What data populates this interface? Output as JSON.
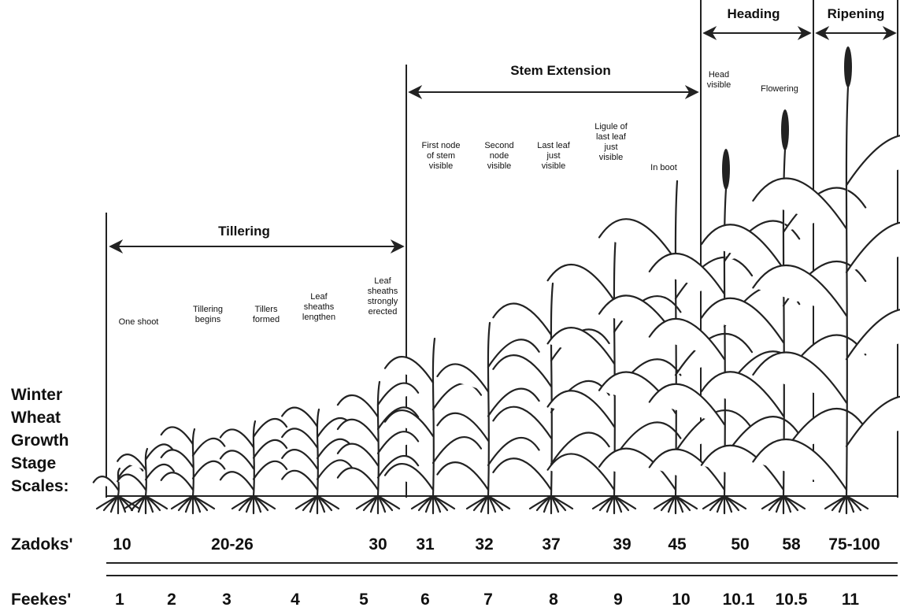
{
  "title_lines": [
    "Winter",
    "Wheat",
    "Growth",
    "Stage",
    "Scales:"
  ],
  "stages": [
    {
      "label": "Tillering"
    },
    {
      "label": "Stem Extension"
    },
    {
      "label": "Heading"
    },
    {
      "label": "Ripening"
    }
  ],
  "descriptions": [
    [
      "One shoot"
    ],
    [
      "Tillering",
      "begins"
    ],
    [
      "Tillers",
      "formed"
    ],
    [
      "Leaf",
      "sheaths",
      "lengthen"
    ],
    [
      "Leaf",
      "sheaths",
      "strongly",
      "erected"
    ],
    [
      "First node",
      "of stem",
      "visible"
    ],
    [
      "Second",
      "node",
      "visible"
    ],
    [
      "Last leaf",
      "just",
      "visible"
    ],
    [
      "Ligule of",
      "last leaf",
      "just",
      "visible"
    ],
    [
      "In boot"
    ],
    [
      "Head",
      "visible"
    ],
    [
      "Flowering"
    ]
  ],
  "zadoks": {
    "label": "Zadoks'",
    "values": [
      "10",
      "20-26",
      "30",
      "31",
      "32",
      "37",
      "39",
      "45",
      "50",
      "58",
      "75-100"
    ]
  },
  "feekes": {
    "label": "Feekes'",
    "values": [
      "1",
      "2",
      "3",
      "4",
      "5",
      "6",
      "7",
      "8",
      "9",
      "10",
      "10.1",
      "10.5",
      "11"
    ]
  }
}
